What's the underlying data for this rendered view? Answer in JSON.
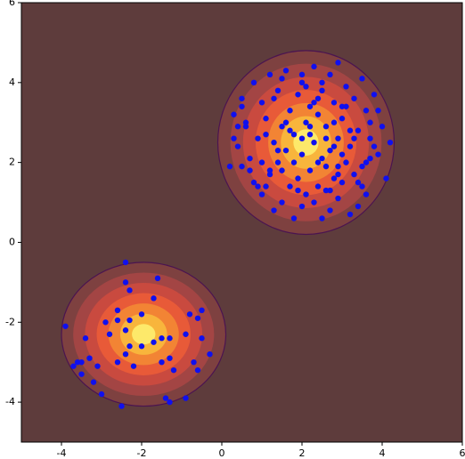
{
  "chart_data": {
    "type": "scatter",
    "xlim": [
      -5,
      6
    ],
    "ylim": [
      -5,
      6
    ],
    "xticks": [
      -4,
      -2,
      0,
      2,
      4,
      6
    ],
    "yticks": [
      -4,
      -2,
      0,
      2,
      4,
      6
    ],
    "background": "#5e3c3c",
    "contours": [
      {
        "cx": -1.95,
        "cy": -2.3,
        "rx": 2.05,
        "ry": 1.8,
        "colors": [
          "#7e4140",
          "#a34544",
          "#c94a3f",
          "#e85a38",
          "#f28434",
          "#f8b53c",
          "#fde96a"
        ],
        "stroke": "#4b1450"
      },
      {
        "cx": 2.1,
        "cy": 2.5,
        "rx": 2.2,
        "ry": 2.3,
        "colors": [
          "#7e4140",
          "#a34544",
          "#c94a3f",
          "#e85a38",
          "#f28434",
          "#f8b53c",
          "#fde96a"
        ],
        "stroke": "#4b1450"
      }
    ],
    "series": [
      {
        "color": "#1010ee",
        "x": [
          -2.4,
          -3.9,
          -3.4,
          -3.3,
          -3.5,
          -3.6,
          -3.1,
          -3.7,
          -3.5,
          -2.3,
          -2.4,
          -1.6,
          -1.7,
          -2.6,
          -2.0,
          -2.3,
          -2.6,
          -2.9,
          -2.4,
          -1.5,
          -2.0,
          -2.8,
          -2.3,
          -1.7,
          -2.4,
          -1.3,
          -0.9,
          -0.8,
          -0.5,
          -0.6,
          -0.5,
          -0.3,
          -1.3,
          -1.5,
          -2.2,
          -2.6,
          -1.2,
          -0.7,
          -0.6,
          -3.0,
          -3.2,
          -1.4,
          -2.5,
          -1.3,
          -0.9
        ],
        "y": [
          -0.5,
          -2.1,
          -2.4,
          -2.9,
          -3.0,
          -3.0,
          -3.1,
          -3.1,
          -3.3,
          -1.2,
          -1.0,
          -0.9,
          -1.4,
          -1.7,
          -1.8,
          -1.95,
          -1.95,
          -2.0,
          -2.2,
          -2.4,
          -2.6,
          -2.3,
          -2.6,
          -2.5,
          -2.8,
          -2.4,
          -2.3,
          -1.8,
          -1.7,
          -1.9,
          -2.4,
          -2.8,
          -2.9,
          -3.0,
          -3.1,
          -3.0,
          -3.2,
          -3.0,
          -3.2,
          -3.8,
          -3.5,
          -3.9,
          -4.1,
          -4.0,
          -3.9
        ]
      },
      {
        "color": "#1010ee",
        "x": [
          1.6,
          2.3,
          2.9,
          1.2,
          0.8,
          3.5,
          2.0,
          1.4,
          2.7,
          3.1,
          0.5,
          1.9,
          2.5,
          3.8,
          1.0,
          2.2,
          3.3,
          0.3,
          1.7,
          2.8,
          3.6,
          1.1,
          2.4,
          3.0,
          0.6,
          1.5,
          2.1,
          2.6,
          3.4,
          4.0,
          0.9,
          1.8,
          2.9,
          3.7,
          0.4,
          1.3,
          2.3,
          3.2,
          1.6,
          2.0,
          2.7,
          3.9,
          0.7,
          1.4,
          2.5,
          3.1,
          0.2,
          1.2,
          2.2,
          3.5,
          1.9,
          2.8,
          3.3,
          0.8,
          1.7,
          2.4,
          3.0,
          4.1,
          1.0,
          2.1,
          2.6,
          3.6,
          0.5,
          1.5,
          2.3,
          2.9,
          3.8,
          1.3,
          2.0,
          2.7,
          3.4,
          0.9,
          1.8,
          2.5,
          3.2,
          0.6,
          1.1,
          2.2,
          3.0,
          3.7,
          1.6,
          2.4,
          2.8,
          1.4,
          2.1,
          3.3,
          0.3,
          1.9,
          2.6,
          3.5,
          1.2,
          2.0,
          2.9,
          4.2,
          0.7,
          1.5,
          2.3,
          3.1,
          1.8,
          2.7,
          1.3,
          2.5,
          3.6,
          0.5,
          2.2,
          3.0,
          1.7,
          2.8,
          3.9,
          1.0,
          2.4,
          3.2,
          1.5,
          2.6,
          3.4,
          2.0,
          1.1,
          2.9,
          0.4,
          3.7
        ],
        "y": [
          4.3,
          4.4,
          4.5,
          4.2,
          4.0,
          4.1,
          4.0,
          3.8,
          4.2,
          3.9,
          3.6,
          3.7,
          3.8,
          3.7,
          3.5,
          3.4,
          3.6,
          3.2,
          3.3,
          3.5,
          3.3,
          3.1,
          3.2,
          3.1,
          2.9,
          2.9,
          3.0,
          2.9,
          2.8,
          2.9,
          2.6,
          2.7,
          2.6,
          2.6,
          2.4,
          2.5,
          2.5,
          2.4,
          2.3,
          2.2,
          2.3,
          2.2,
          2.1,
          2.0,
          2.1,
          2.0,
          1.9,
          1.8,
          1.8,
          1.9,
          1.6,
          1.6,
          1.7,
          1.5,
          1.4,
          1.4,
          1.5,
          1.6,
          1.2,
          1.2,
          1.3,
          1.2,
          1.9,
          1.0,
          1.0,
          1.1,
          2.4,
          0.8,
          0.9,
          0.8,
          0.9,
          1.4,
          0.6,
          0.6,
          0.7,
          3.0,
          2.7,
          2.7,
          2.2,
          3.0,
          3.0,
          3.6,
          3.0,
          2.3,
          3.9,
          2.6,
          2.6,
          1.3,
          1.9,
          1.4,
          1.7,
          2.6,
          1.9,
          2.5,
          1.8,
          1.8,
          3.5,
          3.4,
          2.0,
          1.3,
          3.6,
          4.0,
          2.0,
          3.4,
          2.9,
          3.4,
          2.8,
          2.4,
          3.3,
          2.0,
          2.0,
          2.8,
          4.1,
          2.6,
          1.5,
          4.2,
          1.4,
          1.7,
          2.9,
          2.1
        ]
      }
    ]
  }
}
